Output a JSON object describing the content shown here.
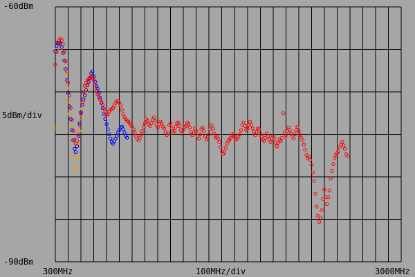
{
  "chart_data": {
    "type": "scatter",
    "title": "",
    "y_top_label": "-60dBm",
    "y_scale_label": "5dBm/div",
    "y_bottom_label": "-90dBm",
    "x_start_label": "300MHz",
    "x_scale_label": "100MHz/div",
    "x_end_label": "3000MHz",
    "xlim": [
      300,
      3000
    ],
    "ylim": [
      -90,
      -60
    ],
    "grid": true,
    "x_divisions": 27,
    "y_divisions": 6,
    "series": [
      {
        "color": "#ff0000",
        "points": [
          [
            300,
            -66.8
          ],
          [
            310,
            -65.3
          ],
          [
            320,
            -64.2
          ],
          [
            330,
            -63.9
          ],
          [
            340,
            -63.7
          ],
          [
            350,
            -63.9
          ],
          [
            360,
            -64.4
          ],
          [
            370,
            -65.3
          ],
          [
            380,
            -66.4
          ],
          [
            390,
            -67.6
          ],
          [
            400,
            -68.9
          ],
          [
            410,
            -70.4
          ],
          [
            420,
            -71.9
          ],
          [
            430,
            -73.3
          ],
          [
            440,
            -74.6
          ],
          [
            450,
            -75.6
          ],
          [
            460,
            -76.1
          ],
          [
            470,
            -75.8
          ],
          [
            480,
            -75
          ],
          [
            490,
            -73.9
          ],
          [
            500,
            -72.6
          ],
          [
            510,
            -71.2
          ],
          [
            520,
            -70
          ],
          [
            530,
            -69.3
          ],
          [
            540,
            -69
          ],
          [
            550,
            -68.7
          ],
          [
            560,
            -68.5
          ],
          [
            570,
            -68.3
          ],
          [
            580,
            -68.2
          ],
          [
            590,
            -68.3
          ],
          [
            600,
            -68.6
          ],
          [
            610,
            -69.2
          ],
          [
            620,
            -69.8
          ],
          [
            630,
            -70.3
          ],
          [
            640,
            -70.6
          ],
          [
            650,
            -70.9
          ],
          [
            660,
            -71.2
          ],
          [
            670,
            -71.5
          ],
          [
            680,
            -72
          ],
          [
            690,
            -72.4
          ],
          [
            700,
            -72.7
          ],
          [
            710,
            -72.6
          ],
          [
            720,
            -72.3
          ],
          [
            730,
            -72.1
          ],
          [
            740,
            -72
          ],
          [
            750,
            -71.9
          ],
          [
            760,
            -71.6
          ],
          [
            770,
            -71.3
          ],
          [
            780,
            -71.1
          ],
          [
            790,
            -71.1
          ],
          [
            800,
            -71.3
          ],
          [
            810,
            -71.6
          ],
          [
            820,
            -72.1
          ],
          [
            830,
            -72.6
          ],
          [
            840,
            -73
          ],
          [
            850,
            -73.2
          ],
          [
            860,
            -73.4
          ],
          [
            870,
            -73.5
          ],
          [
            880,
            -73.7
          ],
          [
            890,
            -73.9
          ],
          [
            900,
            -74.1
          ],
          [
            910,
            -74.4
          ],
          [
            920,
            -74.8
          ],
          [
            930,
            -75.2
          ],
          [
            940,
            -75.5
          ],
          [
            950,
            -75.7
          ],
          [
            960,
            -75.4
          ],
          [
            970,
            -75
          ],
          [
            980,
            -74.6
          ],
          [
            990,
            -74.1
          ],
          [
            1000,
            -73.7
          ],
          [
            1010,
            -73.2
          ],
          [
            1020,
            -73.4
          ],
          [
            1030,
            -73.8
          ],
          [
            1040,
            -74
          ],
          [
            1050,
            -73.7
          ],
          [
            1060,
            -73.3
          ],
          [
            1070,
            -73
          ],
          [
            1080,
            -73.4
          ],
          [
            1090,
            -73.9
          ],
          [
            1100,
            -74.2
          ],
          [
            1110,
            -73.8
          ],
          [
            1120,
            -73.5
          ],
          [
            1130,
            -73.7
          ],
          [
            1140,
            -74.1
          ],
          [
            1150,
            -74.3
          ],
          [
            1160,
            -74.8
          ],
          [
            1170,
            -75.1
          ],
          [
            1180,
            -74.8
          ],
          [
            1190,
            -73.9
          ],
          [
            1200,
            -73.7
          ],
          [
            1210,
            -74.3
          ],
          [
            1220,
            -74.8
          ],
          [
            1230,
            -74.6
          ],
          [
            1240,
            -74.1
          ],
          [
            1250,
            -73.7
          ],
          [
            1260,
            -73.6
          ],
          [
            1270,
            -74
          ],
          [
            1280,
            -74.5
          ],
          [
            1290,
            -74.9
          ],
          [
            1300,
            -74.4
          ],
          [
            1310,
            -74.1
          ],
          [
            1320,
            -74
          ],
          [
            1330,
            -73.6
          ],
          [
            1340,
            -73.8
          ],
          [
            1350,
            -74.2
          ],
          [
            1360,
            -74.7
          ],
          [
            1370,
            -75.1
          ],
          [
            1380,
            -74.8
          ],
          [
            1390,
            -74.3
          ],
          [
            1400,
            -74.6
          ],
          [
            1410,
            -75.2
          ],
          [
            1420,
            -75.5
          ],
          [
            1430,
            -75
          ],
          [
            1440,
            -74.4
          ],
          [
            1450,
            -74.2
          ],
          [
            1460,
            -74.6
          ],
          [
            1470,
            -75.2
          ],
          [
            1480,
            -75.6
          ],
          [
            1490,
            -75.3
          ],
          [
            1500,
            -75
          ],
          [
            1510,
            -74.4
          ],
          [
            1520,
            -73.9
          ],
          [
            1530,
            -74.3
          ],
          [
            1540,
            -74.9
          ],
          [
            1550,
            -75.4
          ],
          [
            1560,
            -75.3
          ],
          [
            1570,
            -75.5
          ],
          [
            1580,
            -75.9
          ],
          [
            1590,
            -76.5
          ],
          [
            1600,
            -77
          ],
          [
            1610,
            -77.3
          ],
          [
            1620,
            -77.1
          ],
          [
            1630,
            -76.6
          ],
          [
            1640,
            -76.1
          ],
          [
            1650,
            -75.8
          ],
          [
            1660,
            -75.6
          ],
          [
            1670,
            -75.4
          ],
          [
            1680,
            -75.1
          ],
          [
            1690,
            -75
          ],
          [
            1700,
            -75.3
          ],
          [
            1710,
            -75.6
          ],
          [
            1720,
            -75.5
          ],
          [
            1730,
            -75.2
          ],
          [
            1740,
            -75
          ],
          [
            1750,
            -74.5
          ],
          [
            1760,
            -73.9
          ],
          [
            1770,
            -73.6
          ],
          [
            1780,
            -74
          ],
          [
            1790,
            -74.5
          ],
          [
            1800,
            -74.3
          ],
          [
            1810,
            -73.9
          ],
          [
            1820,
            -73.5
          ],
          [
            1830,
            -73.9
          ],
          [
            1840,
            -74.3
          ],
          [
            1850,
            -74.7
          ],
          [
            1860,
            -75.1
          ],
          [
            1870,
            -74.7
          ],
          [
            1880,
            -74.3
          ],
          [
            1890,
            -74.4
          ],
          [
            1900,
            -74.9
          ],
          [
            1910,
            -75.3
          ],
          [
            1920,
            -75.6
          ],
          [
            1930,
            -75.8
          ],
          [
            1940,
            -75.4
          ],
          [
            1950,
            -74.9
          ],
          [
            1960,
            -75.2
          ],
          [
            1970,
            -75.6
          ],
          [
            1980,
            -75.9
          ],
          [
            1990,
            -75.5
          ],
          [
            2000,
            -75.2
          ],
          [
            2010,
            -75.5
          ],
          [
            2020,
            -76
          ],
          [
            2030,
            -76.4
          ],
          [
            2040,
            -76
          ],
          [
            2050,
            -75.6
          ],
          [
            2060,
            -75.8
          ],
          [
            2070,
            -75.4
          ],
          [
            2080,
            -72.5
          ],
          [
            2090,
            -74.8
          ],
          [
            2100,
            -75.1
          ],
          [
            2110,
            -74.6
          ],
          [
            2120,
            -74.2
          ],
          [
            2130,
            -74.5
          ],
          [
            2140,
            -74.9
          ],
          [
            2150,
            -75.2
          ],
          [
            2160,
            -75.5
          ],
          [
            2170,
            -75
          ],
          [
            2180,
            -74.5
          ],
          [
            2190,
            -74.1
          ],
          [
            2200,
            -74.6
          ],
          [
            2210,
            -75
          ],
          [
            2220,
            -75.4
          ],
          [
            2230,
            -75.7
          ],
          [
            2240,
            -76.2
          ],
          [
            2250,
            -76.8
          ],
          [
            2260,
            -77.4
          ],
          [
            2270,
            -77.8
          ],
          [
            2280,
            -77.6
          ],
          [
            2290,
            -78
          ],
          [
            2300,
            -78.6
          ],
          [
            2310,
            -79.5
          ],
          [
            2320,
            -80.5
          ],
          [
            2330,
            -82
          ],
          [
            2340,
            -83.5
          ],
          [
            2350,
            -84.6
          ],
          [
            2360,
            -85.3
          ],
          [
            2370,
            -84.8
          ],
          [
            2380,
            -83.9
          ],
          [
            2390,
            -82.6
          ],
          [
            2400,
            -81.5
          ],
          [
            2410,
            -82.4
          ],
          [
            2420,
            -83.2
          ],
          [
            2430,
            -82.4
          ],
          [
            2440,
            -81.6
          ],
          [
            2450,
            -80.2
          ],
          [
            2460,
            -79.3
          ],
          [
            2470,
            -78.5
          ],
          [
            2480,
            -77.8
          ],
          [
            2490,
            -77.4
          ],
          [
            2500,
            -77.2
          ],
          [
            2510,
            -77
          ],
          [
            2520,
            -76.5
          ],
          [
            2530,
            -76.2
          ],
          [
            2540,
            -75.9
          ],
          [
            2550,
            -76.3
          ],
          [
            2560,
            -76.7
          ],
          [
            2570,
            -77.3
          ],
          [
            2580,
            -77.6
          ]
        ]
      },
      {
        "color": "#0000ff",
        "points": [
          [
            300,
            -65.2
          ],
          [
            310,
            -64.6
          ],
          [
            320,
            -64.3
          ],
          [
            330,
            -64.2
          ],
          [
            340,
            -64.3
          ],
          [
            350,
            -64.7
          ],
          [
            360,
            -65.4
          ],
          [
            370,
            -66.3
          ],
          [
            380,
            -67.3
          ],
          [
            390,
            -68.6
          ],
          [
            400,
            -70.1
          ],
          [
            410,
            -71.7
          ],
          [
            420,
            -73.2
          ],
          [
            430,
            -74.5
          ],
          [
            440,
            -75.7
          ],
          [
            450,
            -76.7
          ],
          [
            460,
            -77.1
          ],
          [
            470,
            -76.4
          ],
          [
            480,
            -75.2
          ],
          [
            490,
            -73.7
          ],
          [
            500,
            -72.4
          ],
          [
            510,
            -71.5
          ],
          [
            520,
            -70.9
          ],
          [
            530,
            -70.4
          ],
          [
            540,
            -69.8
          ],
          [
            550,
            -69.2
          ],
          [
            560,
            -68.8
          ],
          [
            570,
            -68.4
          ],
          [
            580,
            -67.8
          ],
          [
            590,
            -67.6
          ],
          [
            600,
            -68.2
          ],
          [
            610,
            -68.8
          ],
          [
            620,
            -69.3
          ],
          [
            630,
            -69.6
          ],
          [
            640,
            -70.1
          ],
          [
            650,
            -70.7
          ],
          [
            660,
            -71.3
          ],
          [
            670,
            -71.9
          ],
          [
            680,
            -72.6
          ],
          [
            690,
            -73.2
          ],
          [
            700,
            -73.8
          ],
          [
            710,
            -74.4
          ],
          [
            720,
            -75
          ],
          [
            730,
            -75.5
          ],
          [
            740,
            -75.9
          ],
          [
            750,
            -76.1
          ],
          [
            760,
            -75.8
          ],
          [
            770,
            -75.5
          ],
          [
            780,
            -75.2
          ],
          [
            790,
            -74.8
          ],
          [
            800,
            -74.5
          ],
          [
            810,
            -74.2
          ],
          [
            820,
            -74.1
          ],
          [
            830,
            -74.4
          ],
          [
            840,
            -74.8
          ],
          [
            850,
            -75.2
          ],
          [
            860,
            -75.4
          ]
        ]
      },
      {
        "color": "#ff9900",
        "points": [
          [
            300,
            -74.2
          ],
          [
            310,
            -65
          ],
          [
            320,
            -64.5
          ],
          [
            330,
            -64.1
          ],
          [
            340,
            -64.2
          ],
          [
            350,
            -64.8
          ],
          [
            360,
            -65.6
          ],
          [
            370,
            -66.7
          ],
          [
            380,
            -68
          ],
          [
            390,
            -69.6
          ],
          [
            400,
            -71.1
          ],
          [
            410,
            -72.6
          ],
          [
            420,
            -74.1
          ],
          [
            430,
            -75.8
          ],
          [
            440,
            -77.5
          ],
          [
            450,
            -78.8
          ],
          [
            460,
            -79.3
          ],
          [
            470,
            -77.8
          ],
          [
            480,
            -76.2
          ],
          [
            490,
            -74.6
          ],
          [
            500,
            -73.1
          ],
          [
            510,
            -72
          ],
          [
            520,
            -71.2
          ],
          [
            530,
            -70.6
          ],
          [
            540,
            -70.1
          ],
          [
            550,
            -69.7
          ],
          [
            560,
            -69.3
          ],
          [
            570,
            -69
          ]
        ]
      }
    ]
  }
}
